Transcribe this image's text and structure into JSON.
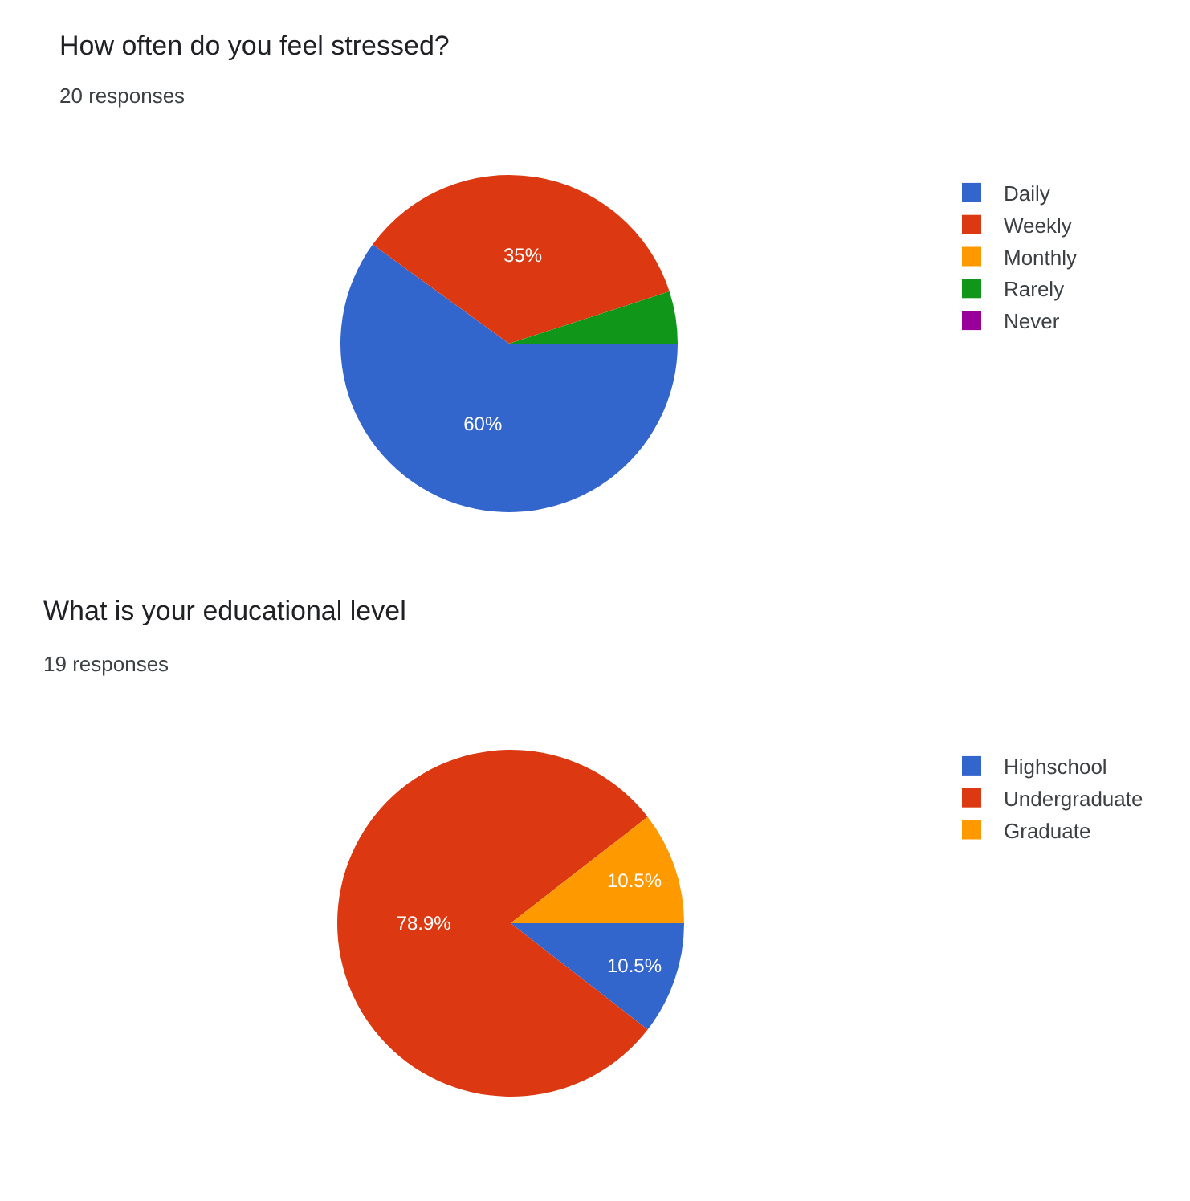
{
  "chart_data": [
    {
      "type": "pie",
      "title": "How often do you feel stressed?",
      "subtitle": "20 responses",
      "categories": [
        "Daily",
        "Weekly",
        "Monthly",
        "Rarely",
        "Never"
      ],
      "values": [
        60,
        35,
        0,
        5,
        0
      ],
      "colors": [
        "#3366cc",
        "#dc3912",
        "#ff9900",
        "#109618",
        "#990099"
      ],
      "value_labels": [
        "60%",
        "35%",
        null,
        null,
        null
      ],
      "legend": "right"
    },
    {
      "type": "pie",
      "title": "What is your educational level",
      "subtitle": "19 responses",
      "categories": [
        "Highschool",
        "Undergraduate",
        "Graduate"
      ],
      "values": [
        10.5,
        78.9,
        10.5
      ],
      "colors": [
        "#3366cc",
        "#dc3912",
        "#ff9900"
      ],
      "value_labels": [
        "10.5%",
        "78.9%",
        "10.5%"
      ],
      "legend": "right"
    }
  ]
}
